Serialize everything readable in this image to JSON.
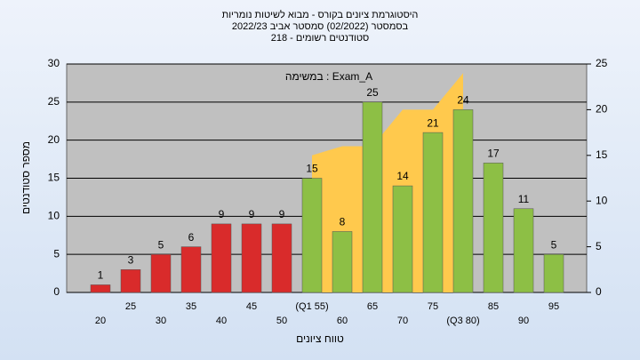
{
  "chart_data": {
    "type": "bar",
    "title": [
      "היסטוגרמת ציונים בקורס - מבוא לשיטות נומריות",
      "בסמסטר  (02/2022)  סמסטר אביב 2022/23",
      "סטודנטים רשומים - 218"
    ],
    "annotation": "במשימה : Exam_A",
    "y_label": "מספר סטודנטים",
    "x_label": "טווח ציונים",
    "categories": [
      "20",
      "25",
      "30",
      "35",
      "40",
      "45",
      "50",
      "(Q1 55)",
      "60",
      "65",
      "70",
      "75",
      "(Q3 80)",
      "85",
      "90",
      "95"
    ],
    "series": [
      {
        "type": "bar",
        "values": [
          1,
          3,
          5,
          6,
          9,
          9,
          9,
          15,
          8,
          25,
          14,
          21,
          24,
          17,
          11,
          5
        ],
        "colors": [
          "#d92b2b",
          "#d92b2b",
          "#d92b2b",
          "#d92b2b",
          "#d92b2b",
          "#d92b2b",
          "#d92b2b",
          "#8dbf45",
          "#8dbf45",
          "#8dbf45",
          "#8dbf45",
          "#8dbf45",
          "#8dbf45",
          "#8dbf45",
          "#8dbf45",
          "#8dbf45"
        ]
      },
      {
        "type": "area",
        "axis": "y2",
        "color": "#ffc94d",
        "values": [
          null,
          null,
          null,
          null,
          null,
          null,
          null,
          15,
          16,
          16,
          20,
          20,
          24,
          null,
          null,
          null
        ]
      }
    ],
    "ylim": [
      0,
      30
    ],
    "yticks": [
      0,
      5,
      10,
      15,
      20,
      25,
      30
    ],
    "y2lim": [
      0,
      25
    ],
    "y2ticks": [
      0,
      5,
      10,
      15,
      20,
      25
    ],
    "grid": true
  }
}
